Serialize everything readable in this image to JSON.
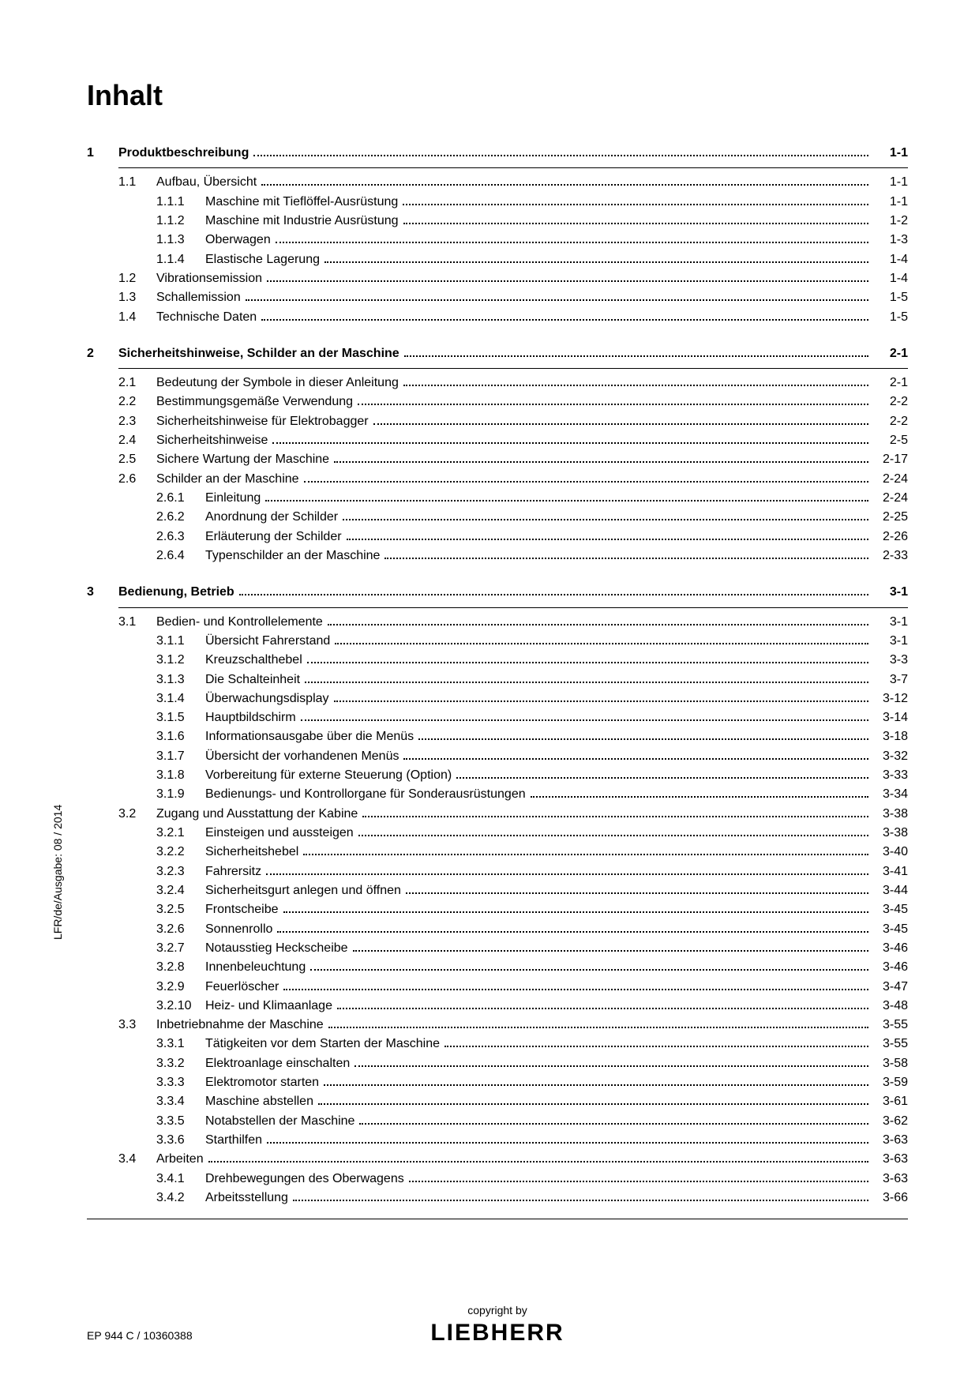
{
  "heading": "Inhalt",
  "side_label": "LFR/de/Ausgabe: 08 / 2014",
  "footer": {
    "copyright": "copyright by",
    "brand": "LIEBHERR",
    "docnum": "EP 944 C / 10360388"
  },
  "toc": [
    {
      "level": 1,
      "num": "1",
      "title": "Produktbeschreibung",
      "page": "1-1"
    },
    {
      "level": 2,
      "num": "1.1",
      "title": "Aufbau, Übersicht",
      "page": "1-1"
    },
    {
      "level": 3,
      "num": "1.1.1",
      "title": "Maschine mit Tieflöffel-Ausrüstung",
      "page": "1-1"
    },
    {
      "level": 3,
      "num": "1.1.2",
      "title": "Maschine mit Industrie Ausrüstung",
      "page": "1-2"
    },
    {
      "level": 3,
      "num": "1.1.3",
      "title": "Oberwagen",
      "page": "1-3"
    },
    {
      "level": 3,
      "num": "1.1.4",
      "title": "Elastische Lagerung",
      "page": "1-4"
    },
    {
      "level": 2,
      "num": "1.2",
      "title": "Vibrationsemission",
      "page": "1-4"
    },
    {
      "level": 2,
      "num": "1.3",
      "title": "Schallemission",
      "page": "1-5"
    },
    {
      "level": 2,
      "num": "1.4",
      "title": "Technische Daten",
      "page": "1-5"
    },
    {
      "level": 1,
      "num": "2",
      "title": "Sicherheitshinweise, Schilder an der Maschine",
      "page": "2-1"
    },
    {
      "level": 2,
      "num": "2.1",
      "title": "Bedeutung der Symbole in dieser Anleitung",
      "page": "2-1"
    },
    {
      "level": 2,
      "num": "2.2",
      "title": "Bestimmungsgemäße Verwendung",
      "page": "2-2"
    },
    {
      "level": 2,
      "num": "2.3",
      "title": "Sicherheitshinweise für Elektrobagger",
      "page": "2-2"
    },
    {
      "level": 2,
      "num": "2.4",
      "title": "Sicherheitshinweise",
      "page": "2-5"
    },
    {
      "level": 2,
      "num": "2.5",
      "title": "Sichere Wartung der Maschine",
      "page": "2-17"
    },
    {
      "level": 2,
      "num": "2.6",
      "title": "Schilder an der Maschine",
      "page": "2-24"
    },
    {
      "level": 3,
      "num": "2.6.1",
      "title": "Einleitung",
      "page": "2-24"
    },
    {
      "level": 3,
      "num": "2.6.2",
      "title": "Anordnung der Schilder",
      "page": "2-25"
    },
    {
      "level": 3,
      "num": "2.6.3",
      "title": "Erläuterung der Schilder",
      "page": "2-26"
    },
    {
      "level": 3,
      "num": "2.6.4",
      "title": "Typenschilder an der Maschine",
      "page": "2-33"
    },
    {
      "level": 1,
      "num": "3",
      "title": "Bedienung, Betrieb",
      "page": "3-1"
    },
    {
      "level": 2,
      "num": "3.1",
      "title": "Bedien- und Kontrollelemente",
      "page": "3-1"
    },
    {
      "level": 3,
      "num": "3.1.1",
      "title": "Übersicht Fahrerstand",
      "page": "3-1"
    },
    {
      "level": 3,
      "num": "3.1.2",
      "title": "Kreuzschalthebel",
      "page": "3-3"
    },
    {
      "level": 3,
      "num": "3.1.3",
      "title": "Die Schalteinheit",
      "page": "3-7"
    },
    {
      "level": 3,
      "num": "3.1.4",
      "title": "Überwachungsdisplay",
      "page": "3-12"
    },
    {
      "level": 3,
      "num": "3.1.5",
      "title": "Hauptbildschirm",
      "page": "3-14"
    },
    {
      "level": 3,
      "num": "3.1.6",
      "title": "Informationsausgabe über die Menüs",
      "page": "3-18"
    },
    {
      "level": 3,
      "num": "3.1.7",
      "title": "Übersicht der vorhandenen Menüs",
      "page": "3-32"
    },
    {
      "level": 3,
      "num": "3.1.8",
      "title": "Vorbereitung für externe Steuerung (Option)",
      "page": "3-33"
    },
    {
      "level": 3,
      "num": "3.1.9",
      "title": "Bedienungs- und Kontrollorgane für Sonderausrüstungen",
      "page": "3-34"
    },
    {
      "level": 2,
      "num": "3.2",
      "title": "Zugang und Ausstattung der Kabine",
      "page": "3-38"
    },
    {
      "level": 3,
      "num": "3.2.1",
      "title": "Einsteigen und aussteigen",
      "page": "3-38"
    },
    {
      "level": 3,
      "num": "3.2.2",
      "title": "Sicherheitshebel",
      "page": "3-40"
    },
    {
      "level": 3,
      "num": "3.2.3",
      "title": "Fahrersitz",
      "page": "3-41"
    },
    {
      "level": 3,
      "num": "3.2.4",
      "title": "Sicherheitsgurt anlegen und öffnen",
      "page": "3-44"
    },
    {
      "level": 3,
      "num": "3.2.5",
      "title": "Frontscheibe",
      "page": "3-45"
    },
    {
      "level": 3,
      "num": "3.2.6",
      "title": "Sonnenrollo",
      "page": "3-45"
    },
    {
      "level": 3,
      "num": "3.2.7",
      "title": "Notausstieg Heckscheibe",
      "page": "3-46"
    },
    {
      "level": 3,
      "num": "3.2.8",
      "title": "Innenbeleuchtung",
      "page": "3-46"
    },
    {
      "level": 3,
      "num": "3.2.9",
      "title": "Feuerlöscher",
      "page": "3-47"
    },
    {
      "level": 3,
      "num": "3.2.10",
      "title": "Heiz- und Klimaanlage",
      "page": "3-48"
    },
    {
      "level": 2,
      "num": "3.3",
      "title": "Inbetriebnahme der Maschine",
      "page": "3-55"
    },
    {
      "level": 3,
      "num": "3.3.1",
      "title": "Tätigkeiten vor dem Starten der Maschine",
      "page": "3-55"
    },
    {
      "level": 3,
      "num": "3.3.2",
      "title": "Elektroanlage einschalten",
      "page": "3-58"
    },
    {
      "level": 3,
      "num": "3.3.3",
      "title": "Elektromotor starten",
      "page": "3-59"
    },
    {
      "level": 3,
      "num": "3.3.4",
      "title": "Maschine abstellen",
      "page": "3-61"
    },
    {
      "level": 3,
      "num": "3.3.5",
      "title": "Notabstellen der Maschine",
      "page": "3-62"
    },
    {
      "level": 3,
      "num": "3.3.6",
      "title": "Starthilfen",
      "page": "3-63"
    },
    {
      "level": 2,
      "num": "3.4",
      "title": "Arbeiten",
      "page": "3-63"
    },
    {
      "level": 3,
      "num": "3.4.1",
      "title": "Drehbewegungen des Oberwagens",
      "page": "3-63"
    },
    {
      "level": 3,
      "num": "3.4.2",
      "title": "Arbeitsstellung",
      "page": "3-66"
    }
  ]
}
